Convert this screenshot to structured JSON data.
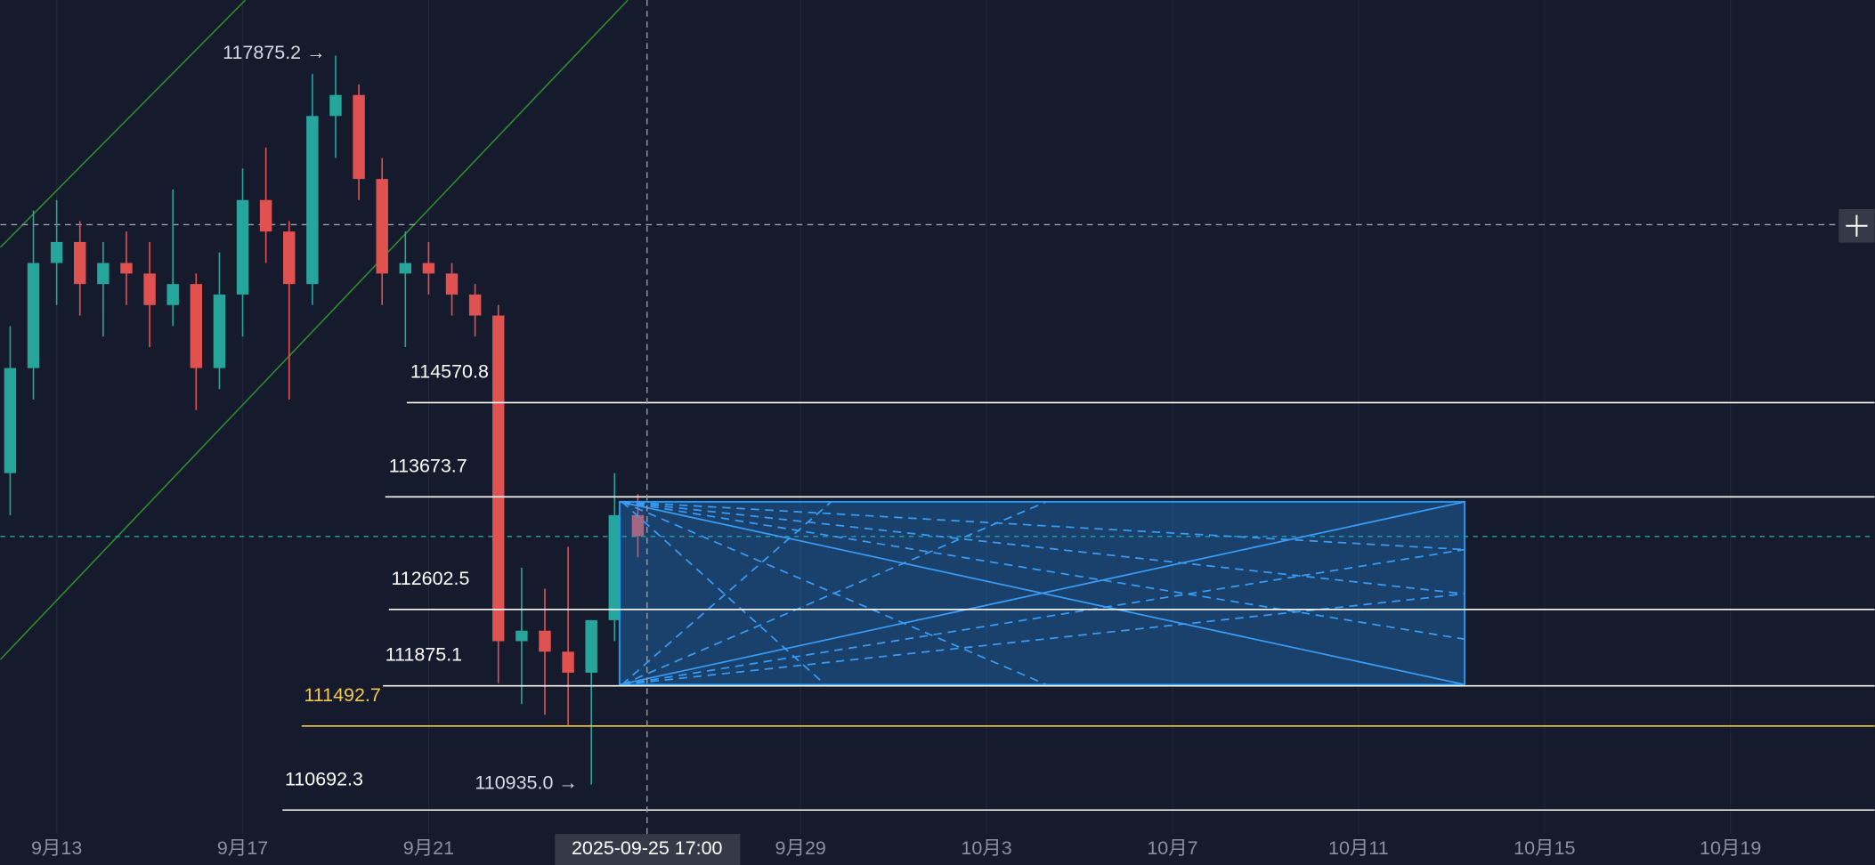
{
  "chart_data": {
    "type": "candlestick",
    "x": [
      12.0,
      12.5,
      13.0,
      13.5,
      14.0,
      14.5,
      15.0,
      15.5,
      16.0,
      16.5,
      17.0,
      17.5,
      18.0,
      18.5,
      19.0,
      19.5,
      20.0,
      20.5,
      21.0,
      21.5,
      22.0,
      22.5,
      23.0,
      23.5,
      24.0,
      24.5,
      25.0,
      25.5
    ],
    "opens": [
      113900,
      114900,
      115900,
      116100,
      115700,
      115900,
      115800,
      115500,
      115700,
      114900,
      115600,
      116500,
      116200,
      115700,
      117300,
      117500,
      116700,
      115800,
      115900,
      115800,
      115600,
      115400,
      112300,
      112400,
      112200,
      112000,
      112500,
      113500
    ],
    "highs": [
      115300,
      116400,
      116500,
      116300,
      116100,
      116200,
      116100,
      116600,
      115800,
      116000,
      116800,
      117000,
      116300,
      117700,
      117875.2,
      117600,
      116900,
      116200,
      116100,
      115900,
      115700,
      115500,
      113000,
      112800,
      113200,
      112500,
      113900,
      113700
    ],
    "lows": [
      113500,
      114600,
      115500,
      115400,
      115200,
      115500,
      115100,
      115300,
      114500,
      114700,
      115200,
      115900,
      114600,
      115500,
      116900,
      116500,
      115500,
      115100,
      115600,
      115400,
      115200,
      111900,
      111700,
      111600,
      111500,
      110935.0,
      112300,
      113100
    ],
    "closes": [
      114900,
      115900,
      116100,
      115700,
      115900,
      115800,
      115500,
      115700,
      114900,
      115600,
      116500,
      116200,
      115700,
      117300,
      117500,
      116700,
      115800,
      115900,
      115800,
      115600,
      115400,
      112300,
      112400,
      112200,
      112000,
      112500,
      113500,
      113300
    ],
    "up_color": "#26a69a",
    "down_color": "#e0524f",
    "xlim": [
      11.79,
      52.1
    ],
    "ylim": [
      110499,
      118404
    ],
    "xticks": [
      {
        "value": 13,
        "label": "9月13"
      },
      {
        "value": 17,
        "label": "9月17"
      },
      {
        "value": 21,
        "label": "9月21"
      },
      {
        "value": 29,
        "label": "9月29"
      },
      {
        "value": 33,
        "label": "10月3"
      },
      {
        "value": 37,
        "label": "10月7"
      },
      {
        "value": 41,
        "label": "10月11"
      },
      {
        "value": 45,
        "label": "10月15"
      },
      {
        "value": 49,
        "label": "10月19"
      }
    ],
    "levels": [
      {
        "value": 114570.8,
        "color": "#ffffff"
      },
      {
        "value": 113673.7,
        "color": "#ffffff"
      },
      {
        "value": 112602.5,
        "color": "#ffffff"
      },
      {
        "value": 111875.1,
        "color": "#ffffff"
      },
      {
        "value": 111492.7,
        "color": "#f2c94c"
      },
      {
        "value": 110692.3,
        "color": "#ffffff"
      }
    ],
    "annotations": [
      "117875.2 →",
      "110935.0 →"
    ],
    "crosshair_label": "2025-09-25 17:00"
  }
}
